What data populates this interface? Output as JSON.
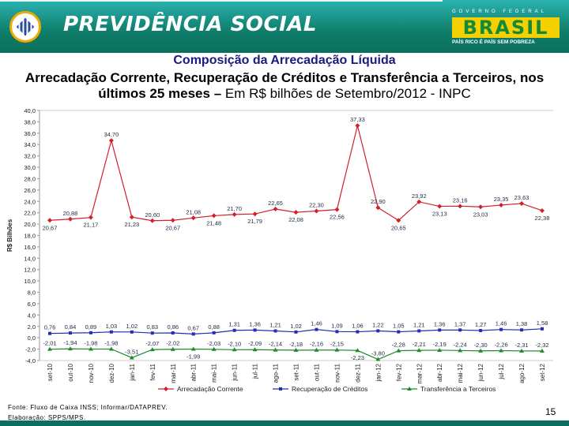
{
  "header": {
    "brand": "PREVIDÊNCIA SOCIAL",
    "gov_label": "GOVERNO FEDERAL",
    "gov_logo": "BRASIL",
    "gov_slogan": "PAÍS RICO É PAÍS SEM POBREZA",
    "colors": {
      "header_green": "#0f7d6a",
      "brasil_yellow": "#f5d000"
    }
  },
  "title": "Composição da Arrecadação Líquida",
  "subtitle_bold": "Arrecadação Corrente, Recuperação de Créditos e Transferência a Terceiros, nos últimos 25 meses –",
  "subtitle_normal": "Em R$ bilhões de Setembro/2012 - INPC",
  "chart_data": {
    "type": "line",
    "ylabel": "R$ Bilhões",
    "ylim": [
      -4,
      40
    ],
    "y_ticks": [
      "40,0",
      "38,0",
      "36,0",
      "34,0",
      "32,0",
      "30,0",
      "28,0",
      "26,0",
      "24,0",
      "22,0",
      "20,0",
      "18,0",
      "16,0",
      "14,0",
      "12,0",
      "10,0",
      "8,0",
      "6,0",
      "4,0",
      "2,0",
      "0,0",
      "-2,0",
      "-4,0"
    ],
    "grid": false,
    "legend_placement": "bottom",
    "categories": [
      "set-10",
      "out-10",
      "nov-10",
      "dez-10",
      "jan-11",
      "fev-11",
      "mar-11",
      "abr-11",
      "mai-11",
      "jun-11",
      "jul-11",
      "ago-11",
      "set-11",
      "out-11",
      "nov-11",
      "dez-11",
      "jan-12",
      "fev-12",
      "mar-12",
      "abr-12",
      "mai-12",
      "jun-12",
      "jul-12",
      "ago-12",
      "set-12"
    ],
    "series": [
      {
        "name": "Arrecadação Corrente",
        "color": "#d0202a",
        "marker": "diamond",
        "values": [
          20.67,
          20.88,
          21.17,
          34.7,
          21.23,
          20.6,
          20.67,
          21.08,
          21.48,
          21.7,
          21.79,
          22.65,
          22.08,
          22.3,
          22.56,
          37.33,
          22.9,
          20.65,
          23.92,
          23.13,
          23.16,
          23.03,
          23.35,
          23.63,
          22.38
        ],
        "labels": [
          "20,67",
          "20,88",
          "21,17",
          "34,70",
          "21,23",
          "20,60",
          "20,67",
          "21,08",
          "21,48",
          "21,70",
          "21,79",
          "22,65",
          "22,08",
          "22,30",
          "22,56",
          "37,33",
          "22,90",
          "20,65",
          "23,92",
          "23,13",
          "23,16",
          "23,03",
          "23,35",
          "23,63",
          "22,38"
        ]
      },
      {
        "name": "Recuperação de Créditos",
        "color": "#2030b0",
        "marker": "square",
        "values": [
          0.76,
          0.84,
          0.89,
          1.03,
          1.02,
          0.83,
          0.86,
          0.67,
          0.88,
          1.31,
          1.36,
          1.21,
          1.02,
          1.46,
          1.09,
          1.06,
          1.22,
          1.05,
          1.21,
          1.36,
          1.37,
          1.27,
          1.46,
          1.38,
          1.58
        ],
        "labels": [
          "0,76",
          "0,84",
          "0,89",
          "1,03",
          "1,02",
          "0,83",
          "0,86",
          "0,67",
          "0,88",
          "1,31",
          "1,36",
          "1,21",
          "1,02",
          "1,46",
          "1,09",
          "1,06",
          "1,22",
          "1,05",
          "1,21",
          "1,36",
          "1,37",
          "1,27",
          "1,46",
          "1,38",
          "1,58"
        ]
      },
      {
        "name": "Transferência a Terceiros",
        "color": "#1e8a2a",
        "marker": "triangle",
        "values": [
          -2.01,
          -1.94,
          -1.98,
          -1.98,
          -3.51,
          -2.07,
          -2.02,
          -1.99,
          -2.03,
          -2.1,
          -2.09,
          -2.14,
          -2.18,
          -2.16,
          -2.15,
          -2.23,
          -3.8,
          -2.28,
          -2.21,
          -2.19,
          -2.24,
          -2.3,
          -2.26,
          -2.31,
          -2.32
        ],
        "labels": [
          "-2,01",
          "-1,94",
          "-1,98",
          "-1,98",
          "-3,51",
          "-2,07",
          "-2,02",
          "-1,99",
          "-2,03",
          "-2,10",
          "-2,09",
          "-2,14",
          "-2,18",
          "-2,16",
          "-2,15",
          "-2,23",
          "-3,80",
          "-2,28",
          "-2,21",
          "-2,19",
          "-2,24",
          "-2,30",
          "-2,26",
          "-2,31",
          "-2,32"
        ]
      }
    ]
  },
  "footer": {
    "source": "Fonte: Fluxo de Caixa INSS; Informar/DATAPREV.",
    "elaboration": "Elaboração: SPPS/MPS.",
    "page_number": "15"
  }
}
